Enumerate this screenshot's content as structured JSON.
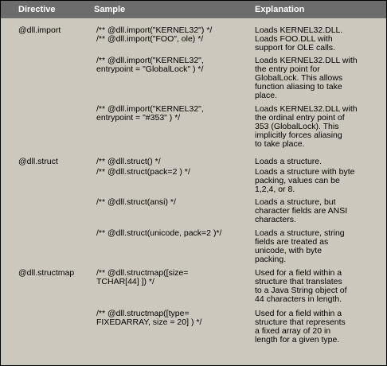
{
  "headers": [
    "Directive",
    "Sample",
    "Explanation"
  ],
  "rows": [
    {
      "directive": "@dll.import",
      "entries": [
        {
          "sample": "/** @dll.import(\"KERNEL32\") */",
          "explanation": "Loads KERNEL32.DLL."
        },
        {
          "sample": "/** @dll.import(\"FOO\", ole) */",
          "explanation": "Loads FOO.DLL with\nsupport for OLE calls."
        },
        {
          "sample": "/** @dll.import(\"KERNEL32\",\nentrypoint = \"GlobalLock\" ) */",
          "explanation": "Loads KERNEL32.DLL with\nthe entry point for\nGlobalLock. This allows\nfunction aliasing to take\nplace."
        },
        {
          "sample": "/** @dll.import(\"KERNEL32\",\nentrypoint = \"#353\" ) */",
          "explanation": "Loads KERNEL32.DLL with\nthe ordinal entry point of\n353 (GlobalLock). This\nimplicitly forces aliasing\nto take place."
        }
      ]
    },
    {
      "directive": "@dll.struct",
      "entries": [
        {
          "sample": "/** @dll.struct() */",
          "explanation": "Loads a structure."
        },
        {
          "sample": "/** @dll.struct(pack=2 ) */",
          "explanation": "Loads a structure with byte\npacking, values can be\n1,2,4, or 8."
        },
        {
          "sample": "/** @dll.struct(ansi) */",
          "explanation": "Loads a structure, but\ncharacter fields are ANSI\ncharacters."
        },
        {
          "sample": "/** @dll.struct(unicode, pack=2 )*/",
          "explanation": "Loads a structure, string\nfields are treated as\nunicode, with byte\npacking."
        }
      ]
    },
    {
      "directive": "@dll.structmap",
      "entries": [
        {
          "sample": "/** @dll.structmap([size=\nTCHAR[44] ]) */",
          "explanation": "Used for a field within a\nstructure that translates\nto a Java String object of\n44 characters in length."
        },
        {
          "sample": "/** @dll.structmap([type=\nFIXEDARRAY, size = 20] ) */",
          "explanation": "Used for a field within a\nstructure that represents\na fixed array of 20 in\nlength for a given type."
        }
      ]
    }
  ]
}
